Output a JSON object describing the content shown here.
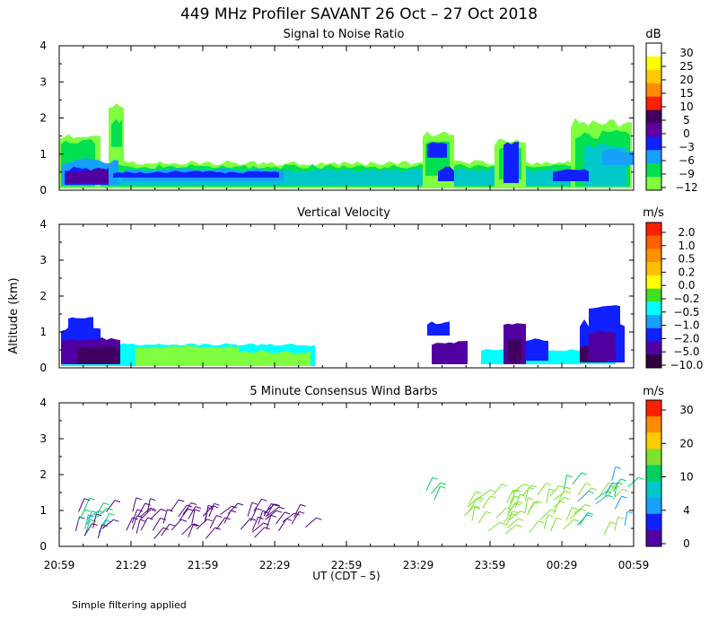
{
  "figure_title": "449 MHz Profiler SAVANT 26 Oct – 27 Oct 2018",
  "ylabel": "Altitude (km)",
  "xlabel": "UT  (CDT – 5)",
  "x_ticks": [
    "20:59",
    "21:29",
    "21:59",
    "22:29",
    "22:59",
    "23:29",
    "23:59",
    "00:29",
    "00:59"
  ],
  "footnote": "Simple filtering applied",
  "colors": {
    "snr": [
      "#80ff40",
      "#00e050",
      "#00c8c8",
      "#18a0ff",
      "#1020ff",
      "#5000a0",
      "#400060"
    ],
    "vel": [
      "#80ff40",
      "#00ffff",
      "#2070ff",
      "#1020ff",
      "#5000a0",
      "#400060"
    ],
    "wind": [
      "#500080",
      "#1020ff",
      "#18a0ff",
      "#00d060",
      "#80e030",
      "#ffa000"
    ]
  },
  "chart_data": [
    {
      "type": "heatmap",
      "title": "Signal to Noise Ratio",
      "units": "dB",
      "ylim": [
        0,
        4
      ],
      "yticks": [
        "0",
        "1",
        "2",
        "3",
        "4"
      ],
      "colorbar": {
        "labels": [
          "30",
          "25",
          "20",
          "15",
          "10",
          "5",
          "0",
          "−3",
          "−6",
          "−9",
          "−12"
        ],
        "colors": [
          "#ffffff",
          "#ffff00",
          "#ffcc00",
          "#ff8c00",
          "#ff2000",
          "#400060",
          "#6000a0",
          "#1020ff",
          "#18a0ff",
          "#00e050",
          "#80ff40"
        ]
      }
    },
    {
      "type": "heatmap",
      "title": "Vertical Velocity",
      "units": "m/s",
      "ylim": [
        0,
        4
      ],
      "yticks": [
        "0",
        "1",
        "2",
        "3",
        "4"
      ],
      "colorbar": {
        "labels": [
          "2.0",
          "1.0",
          "0.5",
          "0.2",
          "0.0",
          "−0.2",
          "−0.5",
          "−1.0",
          "−2.0",
          "−5.0",
          "−10.0"
        ],
        "colors": [
          "#ff2000",
          "#ff6000",
          "#ff9000",
          "#ffc000",
          "#ffff00",
          "#40e020",
          "#00ffff",
          "#18a0ff",
          "#1020ff",
          "#5000a0",
          "#300040"
        ]
      }
    },
    {
      "type": "scatter",
      "title": "5 Minute Consensus Wind Barbs",
      "units": "m/s",
      "ylim": [
        0,
        4
      ],
      "yticks": [
        "0",
        "1",
        "2",
        "3",
        "4"
      ],
      "colorbar": {
        "labels": [
          "30",
          "20",
          "10",
          "4",
          "0"
        ],
        "colors": [
          "#ff2000",
          "#ff8c00",
          "#ffcc00",
          "#80e030",
          "#00d060",
          "#00c8c8",
          "#18a0ff",
          "#1020ff",
          "#5000a0"
        ]
      }
    }
  ]
}
